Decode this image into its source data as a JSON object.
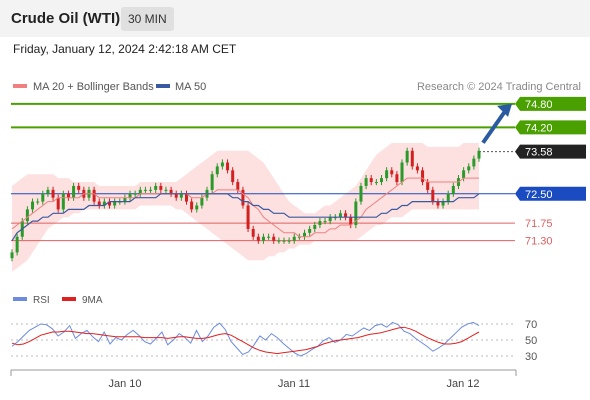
{
  "header": {
    "instrument": "Crude Oil (WTI)",
    "interval": "30 MIN",
    "timestamp": "Friday, January 12, 2024 2:42:18 AM CET"
  },
  "colors": {
    "bullish": "#2a9a2a",
    "bearish": "#d32020",
    "ma20": "#f08080",
    "bollinger_fill": "#fde0e0",
    "ma50": "#3a5aa0",
    "resistance": "#4aa000",
    "support_line": "#e06060",
    "pivot": "#1a4bc0",
    "last_price": "#222222",
    "arrow": "#2a5aa0",
    "rsi": "#6b8be0",
    "rsi_ma": "#e02020"
  },
  "chart_data": [
    {
      "type": "candlestick",
      "title": "Crude Oil (WTI)",
      "interval": "30 MIN",
      "legend": [
        {
          "name": "MA 20 + Bollinger Bands",
          "color": "#f08080"
        },
        {
          "name": "MA 50",
          "color": "#3a5aa0"
        }
      ],
      "legend_position": "top-left",
      "copyright": "Research © 2024 Trading Central",
      "x_ticks": [
        "Jan 10",
        "Jan 11",
        "Jan 12"
      ],
      "y_range": [
        70.6,
        74.9
      ],
      "levels": [
        {
          "value": 74.8,
          "label": "74.80",
          "kind": "resistance"
        },
        {
          "value": 74.2,
          "label": "74.20",
          "kind": "resistance"
        },
        {
          "value": 73.58,
          "label": "73.58",
          "kind": "last"
        },
        {
          "value": 72.5,
          "label": "72.50",
          "kind": "pivot"
        },
        {
          "value": 71.75,
          "label": "71.75",
          "kind": "support"
        },
        {
          "value": 71.3,
          "label": "71.30",
          "kind": "support"
        }
      ],
      "close": [
        71.0,
        71.4,
        71.8,
        72.1,
        72.3,
        72.3,
        72.5,
        72.6,
        72.4,
        72.1,
        72.5,
        72.4,
        72.7,
        72.6,
        72.4,
        72.6,
        72.3,
        72.2,
        72.3,
        72.2,
        72.3,
        72.3,
        72.4,
        72.5,
        72.5,
        72.6,
        72.6,
        72.6,
        72.7,
        72.6,
        72.6,
        72.5,
        72.4,
        72.5,
        72.3,
        72.1,
        72.2,
        72.4,
        72.6,
        73.0,
        73.2,
        73.3,
        73.1,
        72.8,
        72.6,
        72.2,
        71.6,
        71.4,
        71.3,
        71.4,
        71.4,
        71.3,
        71.3,
        71.3,
        71.3,
        71.4,
        71.4,
        71.5,
        71.6,
        71.7,
        71.8,
        71.8,
        71.9,
        71.9,
        72.0,
        71.9,
        71.7,
        72.3,
        72.7,
        72.9,
        72.8,
        72.8,
        72.9,
        73.1,
        73.0,
        72.8,
        73.3,
        73.6,
        73.2,
        73.1,
        72.8,
        72.6,
        72.3,
        72.2,
        72.3,
        72.5,
        72.7,
        72.9,
        73.1,
        73.2,
        73.4,
        73.6
      ],
      "ma20": [
        71.6,
        71.7,
        71.8,
        71.9,
        72.0,
        72.1,
        72.2,
        72.3,
        72.3,
        72.4,
        72.4,
        72.4,
        72.4,
        72.4,
        72.5,
        72.5,
        72.5,
        72.4,
        72.4,
        72.4,
        72.4,
        72.4,
        72.4,
        72.4,
        72.4,
        72.5,
        72.5,
        72.5,
        72.5,
        72.5,
        72.5,
        72.5,
        72.5,
        72.5,
        72.5,
        72.4,
        72.4,
        72.4,
        72.5,
        72.5,
        72.6,
        72.6,
        72.6,
        72.6,
        72.6,
        72.5,
        72.4,
        72.2,
        72.1,
        71.9,
        71.8,
        71.7,
        71.6,
        71.5,
        71.5,
        71.5,
        71.4,
        71.4,
        71.4,
        71.5,
        71.5,
        71.5,
        71.6,
        71.6,
        71.7,
        71.7,
        71.7,
        71.8,
        71.9,
        72.1,
        72.2,
        72.3,
        72.4,
        72.5,
        72.6,
        72.7,
        72.8,
        72.9,
        72.9,
        72.9,
        72.9,
        72.8,
        72.8,
        72.8,
        72.8,
        72.8,
        72.8,
        72.8,
        72.9,
        72.9,
        72.9,
        72.9
      ],
      "bollinger_upper": [
        72.7,
        72.8,
        72.9,
        73.0,
        73.0,
        73.0,
        73.0,
        73.0,
        73.0,
        72.9,
        72.9,
        72.9,
        72.8,
        72.8,
        72.8,
        72.8,
        72.8,
        72.7,
        72.7,
        72.7,
        72.7,
        72.7,
        72.7,
        72.7,
        72.7,
        72.8,
        72.8,
        72.8,
        72.8,
        72.8,
        72.8,
        72.8,
        72.8,
        72.9,
        73.0,
        73.1,
        73.2,
        73.3,
        73.4,
        73.5,
        73.6,
        73.6,
        73.6,
        73.6,
        73.6,
        73.6,
        73.6,
        73.5,
        73.4,
        73.3,
        73.1,
        72.9,
        72.7,
        72.5,
        72.3,
        72.2,
        72.1,
        72.0,
        72.0,
        72.0,
        72.1,
        72.2,
        72.2,
        72.3,
        72.4,
        72.5,
        72.6,
        72.7,
        72.9,
        73.1,
        73.3,
        73.5,
        73.6,
        73.7,
        73.8,
        73.8,
        73.8,
        73.8,
        73.8,
        73.8,
        73.8,
        73.7,
        73.7,
        73.7,
        73.7,
        73.7,
        73.7,
        73.7,
        73.8,
        73.8,
        73.8,
        73.8
      ],
      "bollinger_lower": [
        70.5,
        70.6,
        70.7,
        70.8,
        71.0,
        71.2,
        71.4,
        71.6,
        71.7,
        71.8,
        71.9,
        71.9,
        72.0,
        72.0,
        72.1,
        72.1,
        72.1,
        72.1,
        72.1,
        72.1,
        72.1,
        72.1,
        72.1,
        72.1,
        72.1,
        72.2,
        72.2,
        72.2,
        72.2,
        72.2,
        72.2,
        72.2,
        72.1,
        72.1,
        72.0,
        71.9,
        71.8,
        71.7,
        71.6,
        71.5,
        71.4,
        71.3,
        71.2,
        71.1,
        71.0,
        70.9,
        70.8,
        70.8,
        70.8,
        70.8,
        70.9,
        70.9,
        71.0,
        71.0,
        71.1,
        71.1,
        71.2,
        71.2,
        71.2,
        71.3,
        71.3,
        71.3,
        71.3,
        71.3,
        71.3,
        71.3,
        71.3,
        71.3,
        71.4,
        71.5,
        71.6,
        71.7,
        71.7,
        71.8,
        71.9,
        71.9,
        71.9,
        72.0,
        72.1,
        72.1,
        72.1,
        72.1,
        72.1,
        72.1,
        72.1,
        72.1,
        72.1,
        72.1,
        72.1,
        72.1,
        72.1,
        72.1
      ],
      "ma50": [
        71.3,
        71.5,
        71.6,
        71.7,
        71.8,
        71.8,
        71.9,
        71.9,
        72.0,
        72.0,
        72.0,
        72.1,
        72.1,
        72.1,
        72.1,
        72.2,
        72.2,
        72.2,
        72.2,
        72.3,
        72.3,
        72.3,
        72.3,
        72.3,
        72.4,
        72.4,
        72.4,
        72.4,
        72.4,
        72.5,
        72.5,
        72.5,
        72.5,
        72.5,
        72.5,
        72.5,
        72.5,
        72.5,
        72.5,
        72.5,
        72.5,
        72.5,
        72.5,
        72.4,
        72.4,
        72.3,
        72.3,
        72.2,
        72.2,
        72.1,
        72.1,
        72.0,
        72.0,
        72.0,
        71.9,
        71.9,
        71.9,
        71.9,
        71.9,
        71.9,
        71.9,
        71.9,
        71.9,
        71.9,
        71.9,
        71.9,
        71.9,
        71.9,
        71.9,
        71.9,
        71.9,
        71.9,
        72.0,
        72.0,
        72.1,
        72.1,
        72.2,
        72.2,
        72.3,
        72.3,
        72.3,
        72.3,
        72.3,
        72.3,
        72.3,
        72.3,
        72.3,
        72.4,
        72.4,
        72.4,
        72.4,
        72.5
      ]
    },
    {
      "type": "line",
      "legend": [
        {
          "name": "RSI",
          "color": "#6b8be0"
        },
        {
          "name": "9MA",
          "color": "#e02020"
        }
      ],
      "legend_position": "top-left",
      "y_ticks": [
        70,
        50,
        30
      ],
      "y_range": [
        20,
        80
      ],
      "rsi": [
        42,
        48,
        55,
        62,
        66,
        70,
        69,
        64,
        55,
        60,
        68,
        52,
        58,
        62,
        54,
        48,
        60,
        45,
        53,
        50,
        57,
        62,
        56,
        48,
        45,
        52,
        60,
        44,
        50,
        58,
        53,
        46,
        62,
        48,
        55,
        66,
        71,
        63,
        48,
        40,
        32,
        35,
        44,
        55,
        50,
        58,
        53,
        46,
        40,
        34,
        30,
        33,
        38,
        42,
        49,
        53,
        47,
        50,
        57,
        55,
        60,
        65,
        62,
        68,
        70,
        66,
        72,
        69,
        61,
        58,
        52,
        47,
        42,
        36,
        40,
        45,
        52,
        59,
        66,
        70,
        72,
        68
      ],
      "ma9": [
        46,
        44,
        45,
        48,
        52,
        56,
        58,
        60,
        60,
        61,
        61,
        60,
        59,
        58,
        58,
        57,
        56,
        55,
        54,
        54,
        54,
        54,
        54,
        53,
        53,
        53,
        53,
        52,
        53,
        54,
        54,
        53,
        52,
        52,
        53,
        55,
        57,
        58,
        56,
        52,
        48,
        44,
        40,
        37,
        35,
        34,
        33,
        34,
        35,
        36,
        37,
        38,
        40,
        42,
        45,
        47,
        49,
        50,
        51,
        52,
        53,
        55,
        57,
        58,
        59,
        61,
        63,
        65,
        66,
        64,
        61,
        57,
        53,
        50,
        47,
        45,
        45,
        46,
        48,
        52,
        56,
        60
      ]
    }
  ],
  "price_axis": {
    "labels": [
      "74.80",
      "74.20",
      "73.58",
      "72.50",
      "71.75",
      "71.30"
    ]
  },
  "rsi_axis": {
    "labels": [
      "70",
      "50",
      "30"
    ]
  }
}
